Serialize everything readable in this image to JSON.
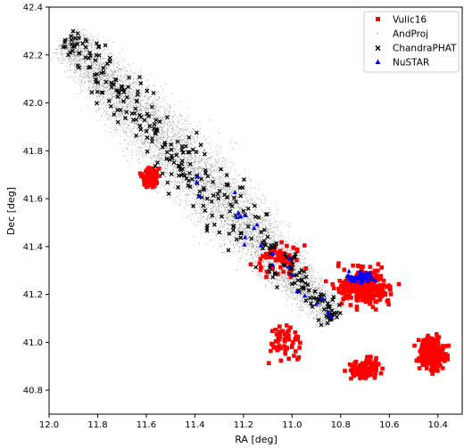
{
  "chart_data": {
    "type": "scatter",
    "title": "",
    "xlabel": "RA [deg]",
    "ylabel": "Dec [deg]",
    "xlim": [
      12.0,
      10.3
    ],
    "ylim": [
      40.7,
      42.4
    ],
    "x_inverted": true,
    "x_ticks": [
      "12.0",
      "11.8",
      "11.6",
      "11.4",
      "11.2",
      "11.0",
      "10.8",
      "10.6",
      "10.4"
    ],
    "y_ticks": [
      "40.8",
      "41.0",
      "41.2",
      "41.4",
      "41.6",
      "41.8",
      "42.0",
      "42.2",
      "42.4"
    ],
    "grid": false,
    "legend_position": "top-right",
    "series": [
      {
        "name": "Vulic16",
        "color": "#ff0000",
        "marker": "square",
        "approx_count": 900,
        "clusters": [
          {
            "ra_range": [
              10.45,
              10.95
            ],
            "dec_range": [
              41.05,
              41.42
            ],
            "density": "dense"
          },
          {
            "ra_range": [
              10.3,
              10.55
            ],
            "dec_range": [
              40.8,
              41.12
            ],
            "density": "dense"
          },
          {
            "ra_range": [
              10.55,
              10.85
            ],
            "dec_range": [
              40.78,
              41.0
            ],
            "density": "moderate"
          },
          {
            "ra_range": [
              10.85,
              11.2
            ],
            "dec_range": [
              40.8,
              41.2
            ],
            "density": "sparse"
          },
          {
            "ra_range": [
              11.5,
              11.67
            ],
            "dec_range": [
              41.6,
              41.78
            ],
            "density": "moderate"
          },
          {
            "ra_range": [
              10.8,
              11.3
            ],
            "dec_range": [
              41.2,
              41.5
            ],
            "density": "sparse"
          }
        ]
      },
      {
        "name": "AndProj",
        "color": "#8c8c8c",
        "marker": "point",
        "approx_count": 8000,
        "region": "diagonal band from (11.95, 42.3) to (10.8, 41.1)"
      },
      {
        "name": "ChandraPHAT",
        "color": "#000000",
        "marker": "x",
        "approx_count": 350,
        "region": "diagonal band from (11.85, 42.2) to (10.9, 41.2)"
      },
      {
        "name": "NuSTAR",
        "color": "#0000ff",
        "marker": "triangle",
        "approx_count": 80,
        "region": "scattered within galaxy band, concentrated near (10.7, 41.27)"
      }
    ]
  }
}
